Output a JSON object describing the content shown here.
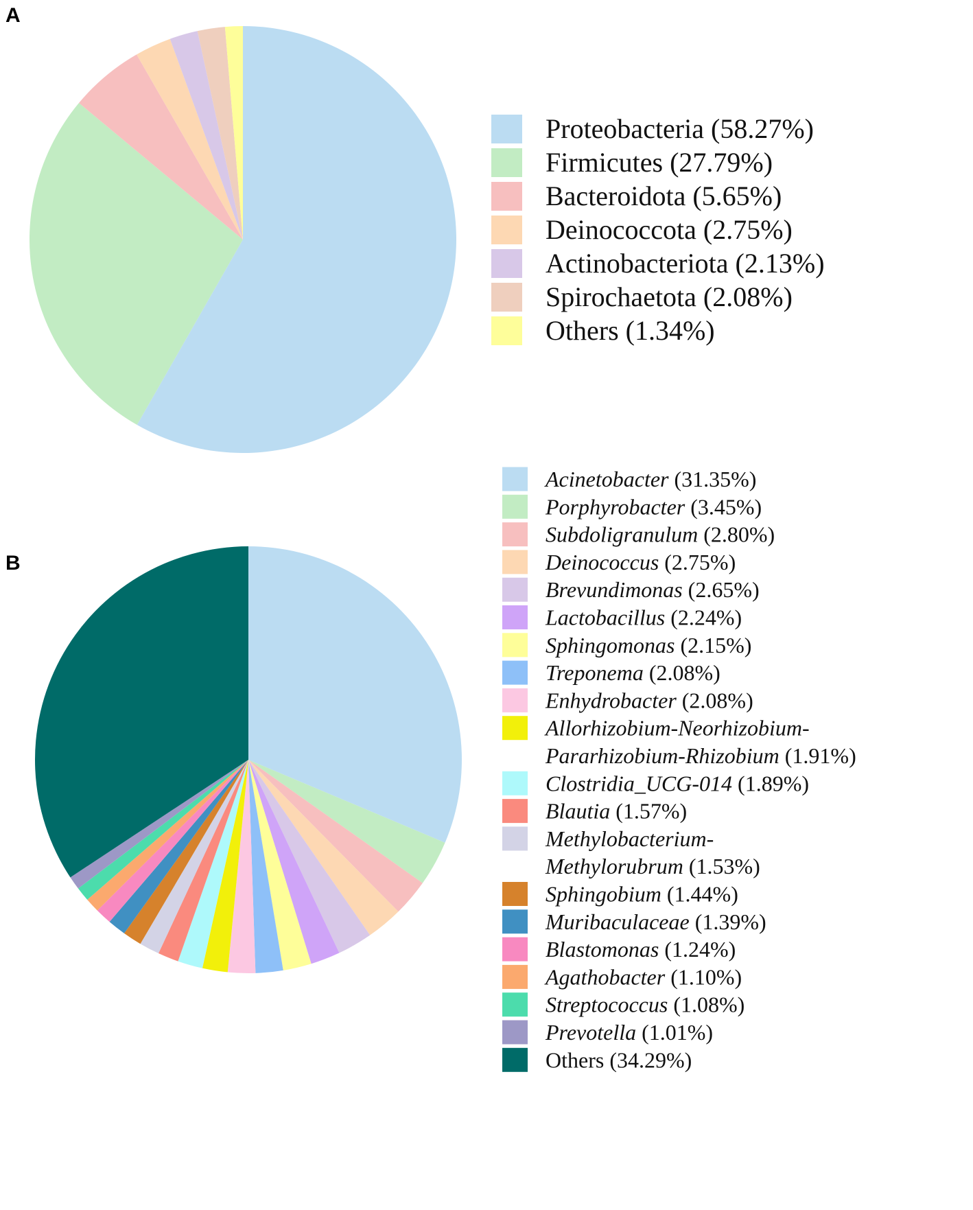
{
  "chart_data": [
    {
      "type": "pie",
      "panel": "A",
      "title": "",
      "slices": [
        {
          "name": "Proteobacteria",
          "value": 58.27,
          "pct_label": " (58.27%)",
          "color": "#bbdcf2",
          "italic": false
        },
        {
          "name": "Firmicutes",
          "value": 27.79,
          "pct_label": " (27.79%)",
          "color": "#c2ecc3",
          "italic": false
        },
        {
          "name": "Bacteroidota",
          "value": 5.65,
          "pct_label": " (5.65%)",
          "color": "#f7bfbf",
          "italic": false
        },
        {
          "name": "Deinococcota",
          "value": 2.75,
          "pct_label": " (2.75%)",
          "color": "#fdd8b3",
          "italic": false
        },
        {
          "name": "Actinobacteriota",
          "value": 2.13,
          "pct_label": " (2.13%)",
          "color": "#d8c8e8",
          "italic": false
        },
        {
          "name": "Spirochaetota",
          "value": 2.08,
          "pct_label": " (2.08%)",
          "color": "#efcfbe",
          "italic": false
        },
        {
          "name": "Others",
          "value": 1.34,
          "pct_label": " (1.34%)",
          "color": "#fefe9a",
          "italic": false
        }
      ]
    },
    {
      "type": "pie",
      "panel": "B",
      "title": "",
      "slices": [
        {
          "name": "Acinetobacter",
          "value": 31.35,
          "pct_label": " (31.35%)",
          "color": "#bbdcf2",
          "italic": true
        },
        {
          "name": "Porphyrobacter",
          "value": 3.45,
          "pct_label": " (3.45%)",
          "color": "#c2ecc3",
          "italic": true
        },
        {
          "name": "Subdoligranulum",
          "value": 2.8,
          "pct_label": " (2.80%)",
          "color": "#f7bfbf",
          "italic": true
        },
        {
          "name": "Deinococcus",
          "value": 2.75,
          "pct_label": " (2.75%)",
          "color": "#fdd8b3",
          "italic": true
        },
        {
          "name": "Brevundimonas",
          "value": 2.65,
          "pct_label": " (2.65%)",
          "color": "#d8c8e8",
          "italic": true
        },
        {
          "name": "Lactobacillus",
          "value": 2.24,
          "pct_label": " (2.24%)",
          "color": "#cfa4f8",
          "italic": true
        },
        {
          "name": "Sphingomonas",
          "value": 2.15,
          "pct_label": " (2.15%)",
          "color": "#fefe99",
          "italic": true
        },
        {
          "name": "Treponema",
          "value": 2.08,
          "pct_label": " (2.08%)",
          "color": "#8ec0f8",
          "italic": true
        },
        {
          "name": "Enhydrobacter",
          "value": 2.08,
          "pct_label": " (2.08%)",
          "color": "#fcc8e2",
          "italic": true
        },
        {
          "name": "Allorhizobium-Neorhizobium-",
          "name2": "Pararhizobium-Rhizobium",
          "value": 1.91,
          "pct_label": " (1.91%)",
          "color": "#f2f00a",
          "italic": true
        },
        {
          "name": "Clostridia_UCG-014",
          "value": 1.89,
          "pct_label": " (1.89%)",
          "color": "#aef9fb",
          "italic": true
        },
        {
          "name": "Blautia",
          "value": 1.57,
          "pct_label": " (1.57%)",
          "color": "#fa8a7e",
          "italic": true
        },
        {
          "name": "Methylobacterium-",
          "name2": "Methylorubrum",
          "value": 1.53,
          "pct_label": " (1.53%)",
          "color": "#d3d3e6",
          "italic": true
        },
        {
          "name": "Sphingobium",
          "value": 1.44,
          "pct_label": " (1.44%)",
          "color": "#d6822c",
          "italic": true
        },
        {
          "name": "Muribaculaceae",
          "value": 1.39,
          "pct_label": " (1.39%)",
          "color": "#4090c2",
          "italic": true
        },
        {
          "name": "Blastomonas",
          "value": 1.24,
          "pct_label": " (1.24%)",
          "color": "#f889c0",
          "italic": true
        },
        {
          "name": "Agathobacter",
          "value": 1.1,
          "pct_label": " (1.10%)",
          "color": "#fba96e",
          "italic": true
        },
        {
          "name": "Streptococcus",
          "value": 1.08,
          "pct_label": " (1.08%)",
          "color": "#4cdcac",
          "italic": true
        },
        {
          "name": "Prevotella",
          "value": 1.01,
          "pct_label": " (1.01%)",
          "color": "#9d98c6",
          "italic": true
        },
        {
          "name": "Others",
          "value": 34.29,
          "pct_label": " (34.29%)",
          "color": "#006b68",
          "italic": false
        }
      ]
    }
  ]
}
